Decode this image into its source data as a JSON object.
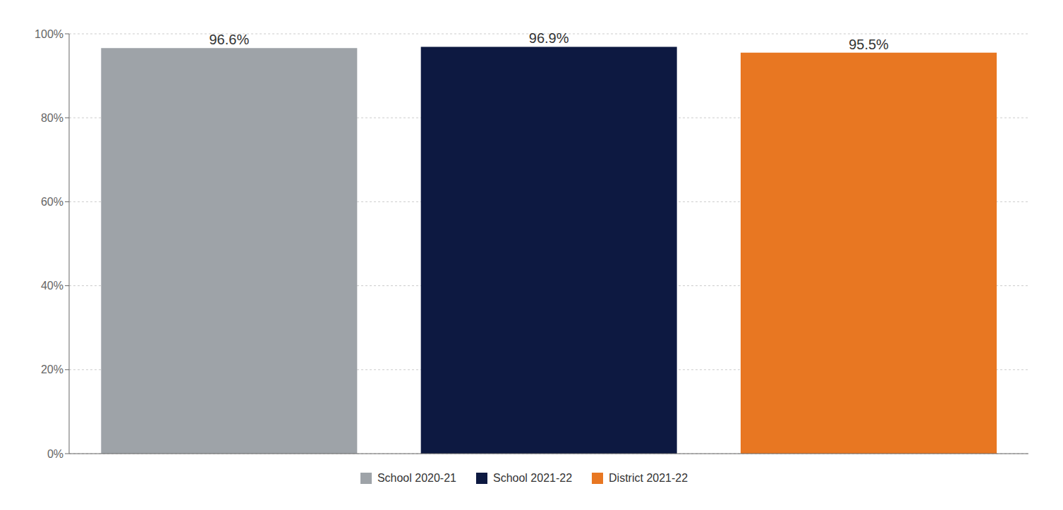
{
  "chart_data": {
    "type": "bar",
    "categories": [
      "School 2020-21",
      "School 2021-22",
      "District 2021-22"
    ],
    "values": [
      0.966,
      0.969,
      0.955
    ],
    "value_labels": [
      "96.6%",
      "96.9%",
      "95.5%"
    ],
    "data_labels": true,
    "colors": [
      "#9EA3A8",
      "#0D1941",
      "#E87722"
    ],
    "ylim": [
      0,
      1.0
    ],
    "yticks": [
      {
        "value": 0.0,
        "label": "0%"
      },
      {
        "value": 0.2,
        "label": "20%"
      },
      {
        "value": 0.4,
        "label": "40%"
      },
      {
        "value": 0.6,
        "label": "60%"
      },
      {
        "value": 0.8,
        "label": "80%"
      },
      {
        "value": 1.0,
        "label": "100%"
      }
    ],
    "grid": true,
    "legend": "bottom",
    "tick_labels": "y"
  }
}
